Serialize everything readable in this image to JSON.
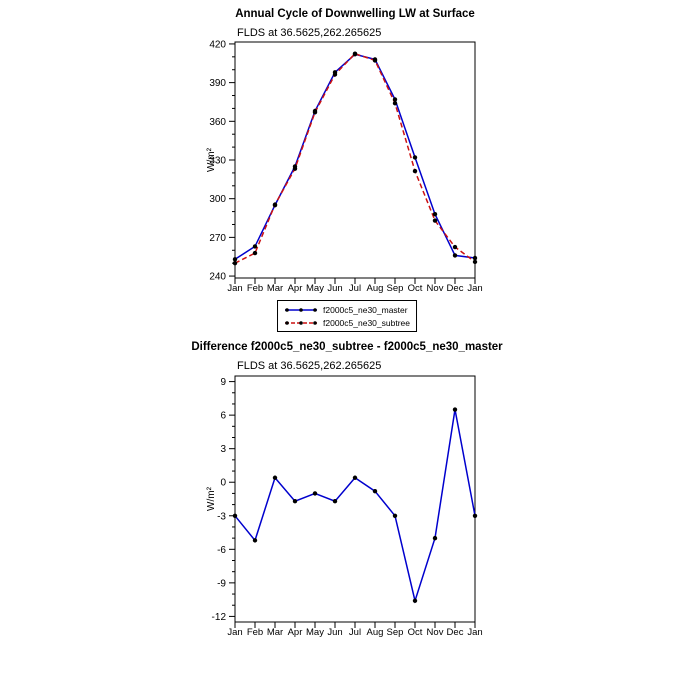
{
  "figure": {
    "background": "#ffffff",
    "frame_color": "#000000"
  },
  "chart_data": [
    {
      "type": "line",
      "title": "Annual Cycle of Downwelling LW at Surface",
      "subtitle": "FLDS at 36.5625,262.265625",
      "ylabel": "W/m²",
      "xlabel": "",
      "categories": [
        "Jan",
        "Feb",
        "Mar",
        "Apr",
        "May",
        "Jun",
        "Jul",
        "Aug",
        "Sep",
        "Oct",
        "Nov",
        "Dec",
        "Jan"
      ],
      "ylim": [
        240,
        420
      ],
      "yticks": [
        240,
        270,
        300,
        330,
        360,
        390,
        420
      ],
      "yminor": 10,
      "grid": false,
      "legend_position": "below",
      "series": [
        {
          "name": "f2000c5_ne30_master",
          "color": "#0000cd",
          "style": "solid",
          "marker": "dot",
          "values": [
            253,
            263,
            295,
            325,
            368,
            398,
            412,
            408,
            377,
            332,
            288,
            256,
            254
          ]
        },
        {
          "name": "f2000c5_ne30_subtree",
          "color": "#cc1111",
          "style": "dashed",
          "marker": "dot",
          "values": [
            250,
            257.8,
            295.4,
            323.3,
            367,
            396.3,
            412.4,
            407.2,
            374,
            321.4,
            283,
            262.5,
            251
          ]
        }
      ]
    },
    {
      "type": "line",
      "title": "Difference f2000c5_ne30_subtree - f2000c5_ne30_master",
      "subtitle": "FLDS at 36.5625,262.265625",
      "ylabel": "W/m²",
      "xlabel": "",
      "categories": [
        "Jan",
        "Feb",
        "Mar",
        "Apr",
        "May",
        "Jun",
        "Jul",
        "Aug",
        "Sep",
        "Oct",
        "Nov",
        "Dec",
        "Jan"
      ],
      "ylim": [
        -12,
        9
      ],
      "yticks": [
        -12,
        -9,
        -6,
        -3,
        0,
        3,
        6,
        9
      ],
      "yminor": 1,
      "grid": false,
      "legend_position": "none",
      "series": [
        {
          "name": "difference",
          "color": "#0000cd",
          "style": "solid",
          "marker": "dot",
          "values": [
            -3,
            -5.2,
            0.4,
            -1.7,
            -1,
            -1.7,
            0.4,
            -0.8,
            -3,
            -10.6,
            -5,
            6.5,
            -3
          ]
        }
      ]
    }
  ]
}
